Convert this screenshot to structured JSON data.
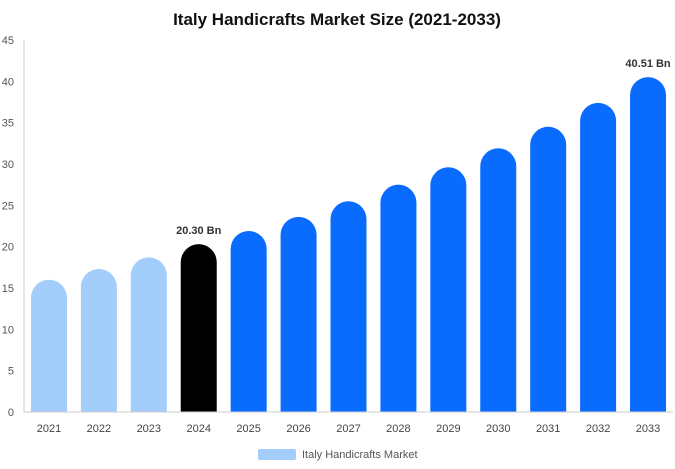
{
  "chart_data": {
    "type": "bar",
    "title": "Italy Handicrafts Market Size (2021-2033)",
    "categories": [
      "2021",
      "2022",
      "2023",
      "2024",
      "2025",
      "2026",
      "2027",
      "2028",
      "2029",
      "2030",
      "2031",
      "2032",
      "2033"
    ],
    "series": [
      {
        "name": "Italy Handicrafts Market",
        "values": [
          16.0,
          17.3,
          18.7,
          20.3,
          21.9,
          23.6,
          25.5,
          27.5,
          29.6,
          31.9,
          34.5,
          37.4,
          40.51
        ]
      }
    ],
    "data_labels": [
      {
        "category": "2024",
        "text": "20.30 Bn"
      },
      {
        "category": "2033",
        "text": "40.51 Bn"
      }
    ],
    "ylim": [
      0,
      45
    ],
    "yticks": [
      0,
      5,
      10,
      15,
      20,
      25,
      30,
      35,
      40,
      45
    ],
    "grid": false,
    "legend_position": "bottom-center",
    "colors": {
      "historical": "#a3cdfb",
      "base_year": "#000000",
      "forecast": "#0a6cff",
      "legend_swatch": "#a3cdfb",
      "axis": "#cccccc"
    }
  }
}
